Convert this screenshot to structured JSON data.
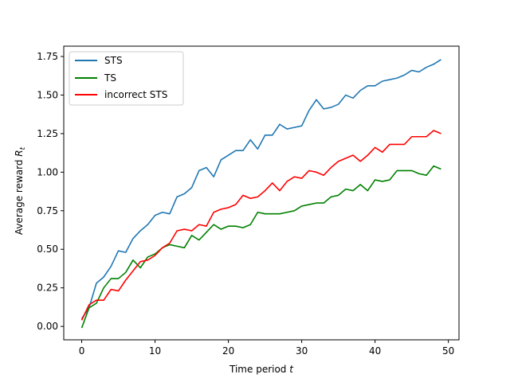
{
  "chart_data": {
    "type": "line",
    "title": "",
    "xlabel": "Time period ",
    "xlabel_var": "t",
    "ylabel": "Average reward ",
    "ylabel_var": "R",
    "ylabel_sub": "t",
    "xlim": [
      -2.45,
      51.45
    ],
    "ylim": [
      -0.087,
      1.817
    ],
    "xticks": [
      0,
      10,
      20,
      30,
      40,
      50
    ],
    "xtick_labels": [
      "0",
      "10",
      "20",
      "30",
      "40",
      "50"
    ],
    "yticks": [
      0.0,
      0.25,
      0.5,
      0.75,
      1.0,
      1.25,
      1.5,
      1.75
    ],
    "ytick_labels": [
      "0.00",
      "0.25",
      "0.50",
      "0.75",
      "1.00",
      "1.25",
      "1.50",
      "1.75"
    ],
    "grid": false,
    "legend_position": "upper-left",
    "x": [
      0,
      1,
      2,
      3,
      4,
      5,
      6,
      7,
      8,
      9,
      10,
      11,
      12,
      13,
      14,
      15,
      16,
      17,
      18,
      19,
      20,
      21,
      22,
      23,
      24,
      25,
      26,
      27,
      28,
      29,
      30,
      31,
      32,
      33,
      34,
      35,
      36,
      37,
      38,
      39,
      40,
      41,
      42,
      43,
      44,
      45,
      46,
      47,
      48,
      49
    ],
    "series": [
      {
        "name": "STS",
        "color": "#1f77b4",
        "values": [
          0.05,
          0.12,
          0.28,
          0.32,
          0.39,
          0.49,
          0.48,
          0.57,
          0.62,
          0.66,
          0.72,
          0.74,
          0.73,
          0.84,
          0.86,
          0.9,
          1.01,
          1.03,
          0.97,
          1.08,
          1.11,
          1.14,
          1.14,
          1.21,
          1.15,
          1.24,
          1.24,
          1.31,
          1.28,
          1.29,
          1.3,
          1.4,
          1.47,
          1.41,
          1.42,
          1.44,
          1.5,
          1.48,
          1.53,
          1.56,
          1.56,
          1.59,
          1.6,
          1.61,
          1.63,
          1.66,
          1.65,
          1.68,
          1.7,
          1.73
        ]
      },
      {
        "name": "TS",
        "color": "#008000",
        "values": [
          -0.01,
          0.12,
          0.15,
          0.25,
          0.31,
          0.31,
          0.35,
          0.43,
          0.38,
          0.45,
          0.47,
          0.51,
          0.53,
          0.52,
          0.51,
          0.59,
          0.56,
          0.61,
          0.66,
          0.63,
          0.65,
          0.65,
          0.64,
          0.66,
          0.74,
          0.73,
          0.73,
          0.73,
          0.74,
          0.75,
          0.78,
          0.79,
          0.8,
          0.8,
          0.84,
          0.85,
          0.89,
          0.88,
          0.92,
          0.88,
          0.95,
          0.94,
          0.95,
          1.01,
          1.01,
          1.01,
          0.99,
          0.98,
          1.04,
          1.02
        ]
      },
      {
        "name": "incorrect STS",
        "color": "#ff0000",
        "values": [
          0.04,
          0.14,
          0.17,
          0.17,
          0.24,
          0.23,
          0.3,
          0.36,
          0.42,
          0.43,
          0.46,
          0.51,
          0.54,
          0.62,
          0.63,
          0.62,
          0.66,
          0.65,
          0.74,
          0.76,
          0.77,
          0.79,
          0.85,
          0.83,
          0.84,
          0.88,
          0.93,
          0.88,
          0.94,
          0.97,
          0.96,
          1.01,
          1.0,
          0.98,
          1.03,
          1.07,
          1.09,
          1.11,
          1.07,
          1.11,
          1.16,
          1.13,
          1.18,
          1.18,
          1.18,
          1.23,
          1.23,
          1.23,
          1.27,
          1.25
        ]
      }
    ]
  }
}
